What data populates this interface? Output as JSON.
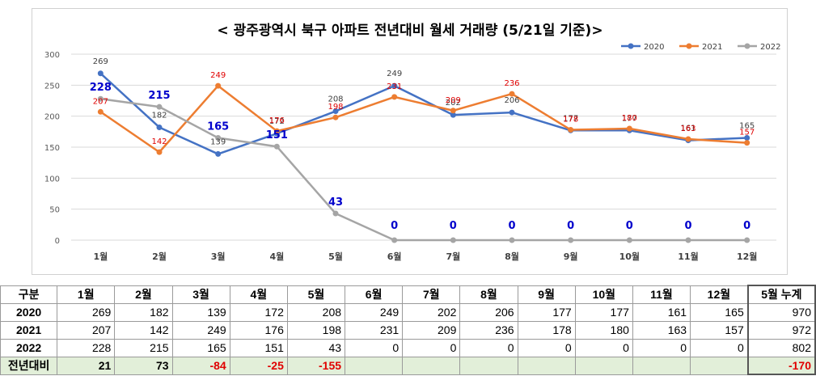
{
  "chart_data": {
    "type": "line",
    "title": "< 광주광역시 북구  아파트 전년대비 월세 거래량 (5/21일 기준)>",
    "categories": [
      "1월",
      "2월",
      "3월",
      "4월",
      "5월",
      "6월",
      "7월",
      "8월",
      "9월",
      "10월",
      "11월",
      "12월"
    ],
    "ylim": [
      0,
      300
    ],
    "yticks": [
      0,
      50,
      100,
      150,
      200,
      250,
      300
    ],
    "grid": true,
    "legend_position": "top-right",
    "series": [
      {
        "name": "2020",
        "color": "#4472c4",
        "values": [
          269,
          182,
          139,
          172,
          208,
          249,
          202,
          206,
          177,
          177,
          161,
          165
        ]
      },
      {
        "name": "2021",
        "color": "#ed7d31",
        "values": [
          207,
          142,
          249,
          176,
          198,
          231,
          209,
          236,
          178,
          180,
          163,
          157
        ]
      },
      {
        "name": "2022",
        "color": "#a5a5a5",
        "values": [
          228,
          215,
          165,
          151,
          43,
          0,
          0,
          0,
          0,
          0,
          0,
          0
        ]
      }
    ],
    "label_colors": {
      "2020": "#404040",
      "2021": "#e00000",
      "2022": "#0000cc"
    }
  },
  "table": {
    "headers": [
      "구분",
      "1월",
      "2월",
      "3월",
      "4월",
      "5월",
      "6월",
      "7월",
      "8월",
      "9월",
      "10월",
      "11월",
      "12월",
      "5월 누계"
    ],
    "rows": [
      {
        "label": "2020",
        "values": [
          "269",
          "182",
          "139",
          "172",
          "208",
          "249",
          "202",
          "206",
          "177",
          "177",
          "161",
          "165"
        ],
        "total": "970"
      },
      {
        "label": "2021",
        "values": [
          "207",
          "142",
          "249",
          "176",
          "198",
          "231",
          "209",
          "236",
          "178",
          "180",
          "163",
          "157"
        ],
        "total": "972"
      },
      {
        "label": "2022",
        "values": [
          "228",
          "215",
          "165",
          "151",
          "43",
          "0",
          "0",
          "0",
          "0",
          "0",
          "0",
          "0"
        ],
        "total": "802"
      }
    ],
    "diff": {
      "label": "전년대비",
      "values": [
        "21",
        "73",
        "-84",
        "-25",
        "-155",
        "",
        "",
        "",
        "",
        "",
        "",
        ""
      ],
      "total": "-170"
    }
  }
}
